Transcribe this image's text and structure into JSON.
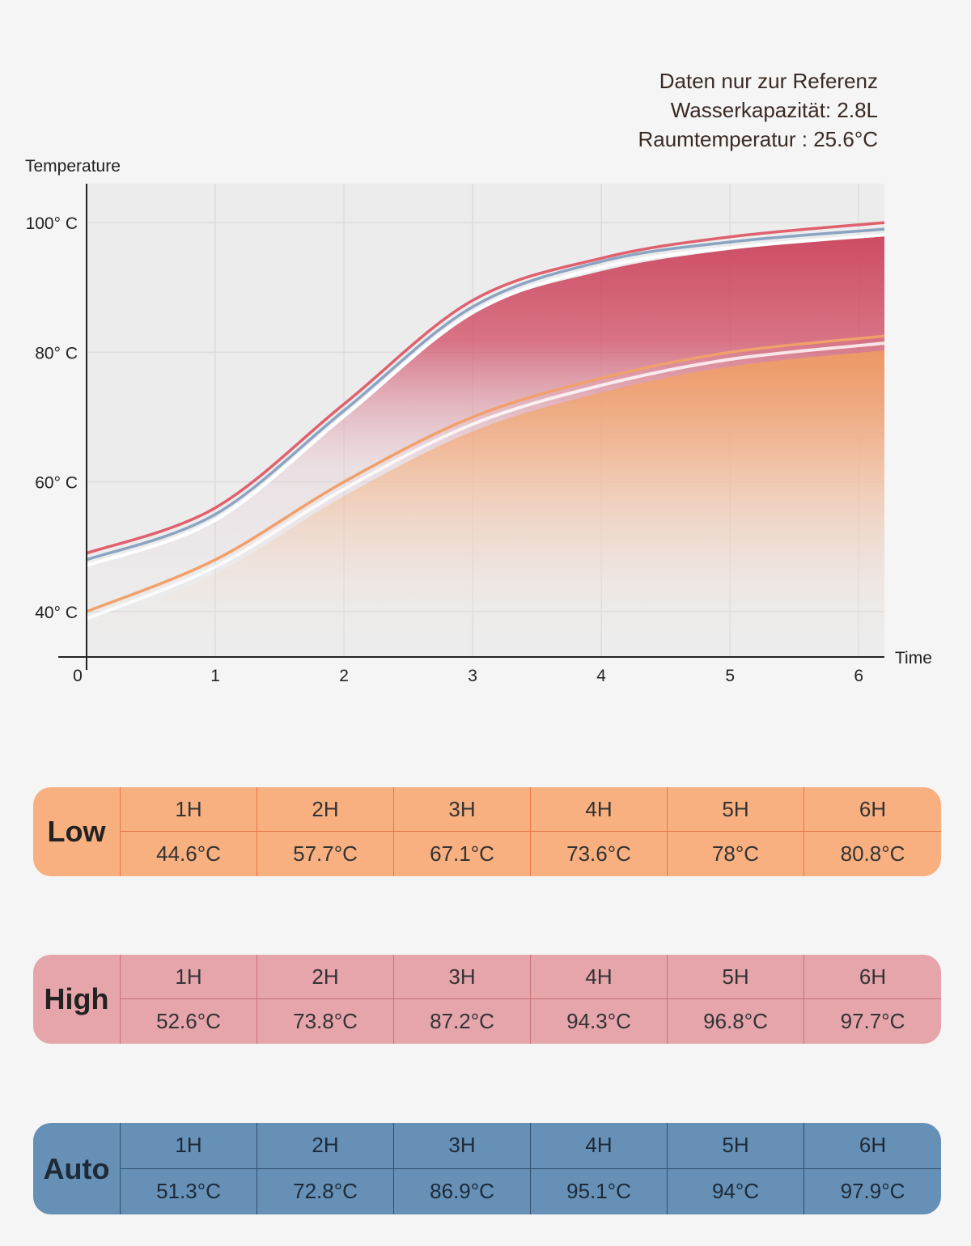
{
  "notes": [
    "Daten nur zur Referenz",
    "Wasserkapazität: 2.8L",
    "Raumtemperatur : 25.6°C"
  ],
  "chart_data": {
    "type": "area",
    "ylabel": "Temperature",
    "xlabel": "Time",
    "x_ticks": [
      "0",
      "1",
      "2",
      "3",
      "4",
      "5",
      "6"
    ],
    "y_ticks": [
      {
        "value": 40,
        "label": "40° C"
      },
      {
        "value": 60,
        "label": "60° C"
      },
      {
        "value": 80,
        "label": "80° C"
      },
      {
        "value": 100,
        "label": "100° C"
      }
    ],
    "xlim": [
      0,
      6.2
    ],
    "ylim": [
      33,
      106
    ],
    "grid": true,
    "series": [
      {
        "name": "High",
        "color": "#e0606e",
        "x": [
          0,
          1,
          2,
          3,
          4,
          5,
          6.2
        ],
        "values": [
          49,
          56,
          72,
          88,
          94.5,
          97.8,
          100
        ]
      },
      {
        "name": "Auto",
        "color": "#8aa4c2",
        "x": [
          0,
          1,
          2,
          3,
          4,
          5,
          6.2
        ],
        "values": [
          48,
          55,
          71,
          87,
          94,
          97,
          99
        ]
      },
      {
        "name": "Low",
        "color": "#f0a06a",
        "x": [
          0,
          1,
          2,
          3,
          4,
          5,
          6.2
        ],
        "values": [
          40,
          48,
          60,
          70,
          76,
          80,
          82.5
        ]
      }
    ]
  },
  "tables": [
    {
      "mode": "Low",
      "hours": [
        "1H",
        "2H",
        "3H",
        "4H",
        "5H",
        "6H"
      ],
      "temps": [
        "44.6°C",
        "57.7°C",
        "67.1°C",
        "73.6°C",
        "78°C",
        "80.8°C"
      ],
      "color": "#f8b080"
    },
    {
      "mode": "High",
      "hours": [
        "1H",
        "2H",
        "3H",
        "4H",
        "5H",
        "6H"
      ],
      "temps": [
        "52.6°C",
        "73.8°C",
        "87.2°C",
        "94.3°C",
        "96.8°C",
        "97.7°C"
      ],
      "color": "#e5a5ab"
    },
    {
      "mode": "Auto",
      "hours": [
        "1H",
        "2H",
        "3H",
        "4H",
        "5H",
        "6H"
      ],
      "temps": [
        "51.3°C",
        "72.8°C",
        "86.9°C",
        "95.1°C",
        "94°C",
        "97.9°C"
      ],
      "color": "#6690b6"
    }
  ]
}
